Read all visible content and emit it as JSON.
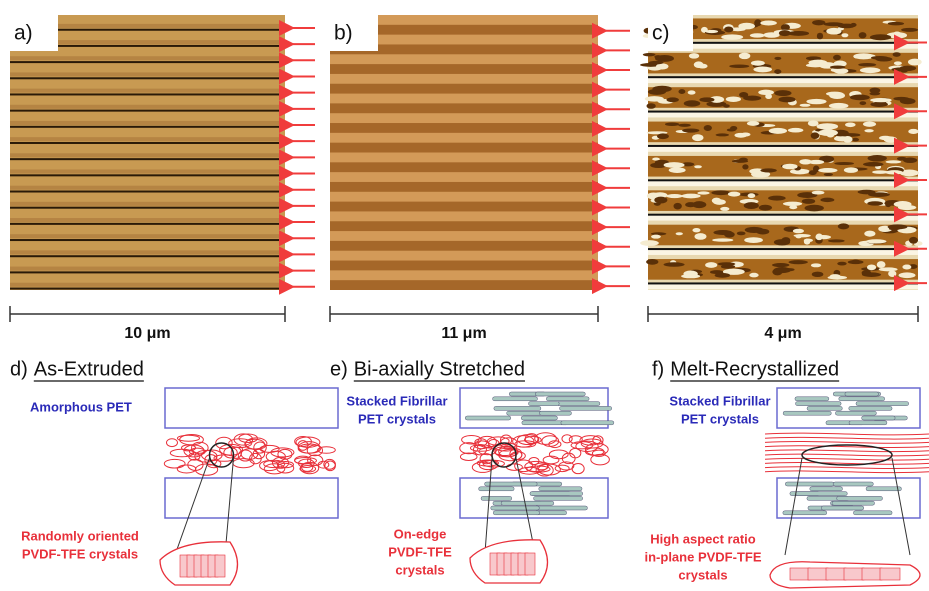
{
  "panels": [
    {
      "label": "a)",
      "scale": "10 μm"
    },
    {
      "label": "b)",
      "scale": "11 μm"
    },
    {
      "label": "c)",
      "scale": "4 μm"
    }
  ],
  "schematics": [
    {
      "label": "d)",
      "title": "As-Extruded",
      "top_label": [
        "Amorphous PET"
      ],
      "bottom_label": [
        "Randomly oriented",
        "PVDF-TFE crystals"
      ]
    },
    {
      "label": "e)",
      "title": "Bi-axially Stretched",
      "top_label": [
        "Stacked Fibrillar",
        "PET crystals"
      ],
      "bottom_label": [
        "On-edge",
        "PVDF-TFE",
        "crystals"
      ]
    },
    {
      "label": "f)",
      "title": "Melt-Recrystallized",
      "top_label": [
        "Stacked Fibrillar",
        "PET crystals"
      ],
      "bottom_label": [
        "High aspect ratio",
        "in-plane PVDF-TFE",
        "crystals"
      ]
    }
  ]
}
